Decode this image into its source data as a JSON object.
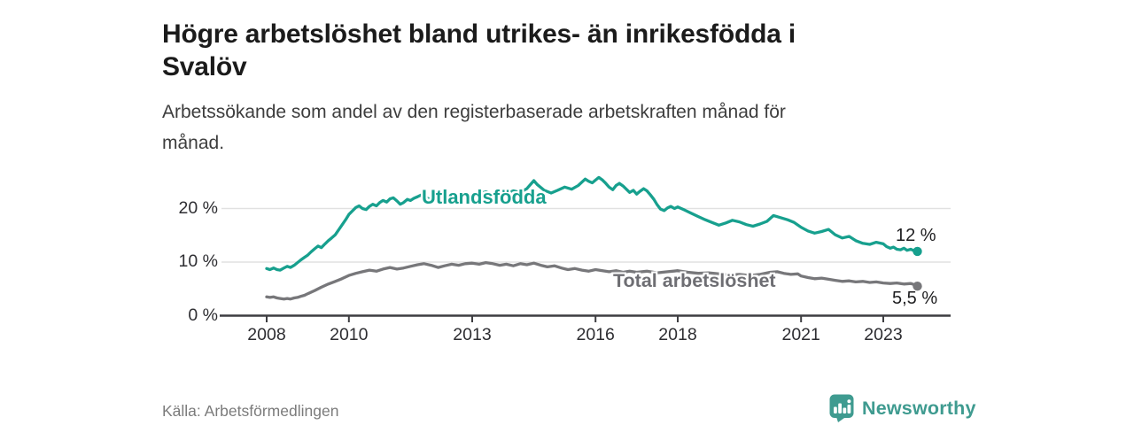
{
  "header": {
    "title_lines": [
      "Högre arbetslöshet bland utrikes- än inrikesfödda i",
      "Svalöv"
    ],
    "subtitle_lines": [
      "Arbetssökande som andel av den registerbaserade arbetskraften månad för",
      "månad."
    ]
  },
  "colors": {
    "accent_teal": "#17a08e",
    "line_gray": "#77777a",
    "grid": "#e1e1e1",
    "axis": "#3d3d41",
    "brand_teal": "#3f9b90"
  },
  "chart_data": {
    "type": "line",
    "x_axis": {
      "label_years": [
        2008,
        2010,
        2013,
        2016,
        2018,
        2021,
        2023
      ],
      "range": [
        2008,
        2024.2
      ]
    },
    "y_axis": {
      "unit": "%",
      "range": [
        0,
        27
      ],
      "ticks": [
        {
          "value": 0,
          "label": "0 %"
        },
        {
          "value": 10,
          "label": "10 %"
        },
        {
          "value": 20,
          "label": "20 %"
        }
      ]
    },
    "grid": "horizontal-only",
    "legend": "inline-labels-on-lines",
    "series": [
      {
        "name": "Utlandsfödda",
        "color": "#17a08e",
        "end_label": "12 %",
        "end_value": 12.0,
        "points": [
          [
            2008.0,
            8.8
          ],
          [
            2008.08,
            8.6
          ],
          [
            2008.17,
            8.9
          ],
          [
            2008.25,
            8.6
          ],
          [
            2008.33,
            8.5
          ],
          [
            2008.42,
            8.9
          ],
          [
            2008.5,
            9.2
          ],
          [
            2008.58,
            9.0
          ],
          [
            2008.67,
            9.4
          ],
          [
            2008.75,
            9.9
          ],
          [
            2008.83,
            10.4
          ],
          [
            2008.92,
            10.9
          ],
          [
            2009.0,
            11.3
          ],
          [
            2009.08,
            11.9
          ],
          [
            2009.17,
            12.5
          ],
          [
            2009.25,
            13.0
          ],
          [
            2009.33,
            12.7
          ],
          [
            2009.42,
            13.4
          ],
          [
            2009.5,
            14.0
          ],
          [
            2009.58,
            14.5
          ],
          [
            2009.67,
            15.1
          ],
          [
            2009.75,
            16.0
          ],
          [
            2009.83,
            16.9
          ],
          [
            2009.92,
            17.9
          ],
          [
            2010.0,
            18.9
          ],
          [
            2010.08,
            19.5
          ],
          [
            2010.17,
            20.2
          ],
          [
            2010.25,
            20.5
          ],
          [
            2010.33,
            20.0
          ],
          [
            2010.42,
            19.8
          ],
          [
            2010.5,
            20.4
          ],
          [
            2010.58,
            20.8
          ],
          [
            2010.67,
            20.5
          ],
          [
            2010.75,
            21.1
          ],
          [
            2010.83,
            21.5
          ],
          [
            2010.92,
            21.2
          ],
          [
            2011.0,
            21.8
          ],
          [
            2011.08,
            22.0
          ],
          [
            2011.17,
            21.4
          ],
          [
            2011.25,
            20.8
          ],
          [
            2011.33,
            21.1
          ],
          [
            2011.42,
            21.7
          ],
          [
            2011.5,
            21.5
          ],
          [
            2011.58,
            21.9
          ],
          [
            2011.67,
            22.2
          ],
          [
            2011.75,
            22.5
          ],
          [
            2011.83,
            22.2
          ],
          [
            2011.92,
            21.9
          ],
          [
            2012.0,
            21.6
          ],
          [
            2012.17,
            22.0
          ],
          [
            2012.33,
            21.7
          ],
          [
            2012.5,
            22.1
          ],
          [
            2012.67,
            22.4
          ],
          [
            2012.83,
            22.1
          ],
          [
            2013.0,
            22.5
          ],
          [
            2013.17,
            22.8
          ],
          [
            2013.33,
            23.1
          ],
          [
            2013.5,
            22.6
          ],
          [
            2013.67,
            23.0
          ],
          [
            2013.83,
            22.8
          ],
          [
            2014.0,
            23.3
          ],
          [
            2014.17,
            23.0
          ],
          [
            2014.33,
            23.7
          ],
          [
            2014.5,
            25.2
          ],
          [
            2014.58,
            24.5
          ],
          [
            2014.75,
            23.4
          ],
          [
            2014.92,
            22.9
          ],
          [
            2015.08,
            23.4
          ],
          [
            2015.25,
            24.0
          ],
          [
            2015.42,
            23.6
          ],
          [
            2015.58,
            24.3
          ],
          [
            2015.75,
            25.5
          ],
          [
            2015.83,
            25.1
          ],
          [
            2015.92,
            24.8
          ],
          [
            2016.0,
            25.3
          ],
          [
            2016.08,
            25.8
          ],
          [
            2016.17,
            25.3
          ],
          [
            2016.25,
            24.7
          ],
          [
            2016.33,
            24.0
          ],
          [
            2016.42,
            23.5
          ],
          [
            2016.5,
            24.3
          ],
          [
            2016.58,
            24.7
          ],
          [
            2016.67,
            24.2
          ],
          [
            2016.75,
            23.6
          ],
          [
            2016.83,
            23.0
          ],
          [
            2016.92,
            23.4
          ],
          [
            2017.0,
            22.7
          ],
          [
            2017.08,
            23.2
          ],
          [
            2017.17,
            23.7
          ],
          [
            2017.25,
            23.3
          ],
          [
            2017.33,
            22.6
          ],
          [
            2017.42,
            21.7
          ],
          [
            2017.5,
            20.7
          ],
          [
            2017.58,
            19.9
          ],
          [
            2017.67,
            19.6
          ],
          [
            2017.75,
            20.1
          ],
          [
            2017.83,
            20.4
          ],
          [
            2017.92,
            20.0
          ],
          [
            2018.0,
            20.3
          ],
          [
            2018.17,
            19.7
          ],
          [
            2018.33,
            19.1
          ],
          [
            2018.5,
            18.5
          ],
          [
            2018.67,
            17.9
          ],
          [
            2018.83,
            17.4
          ],
          [
            2019.0,
            16.9
          ],
          [
            2019.17,
            17.3
          ],
          [
            2019.33,
            17.8
          ],
          [
            2019.5,
            17.5
          ],
          [
            2019.67,
            17.0
          ],
          [
            2019.83,
            16.7
          ],
          [
            2020.0,
            17.1
          ],
          [
            2020.17,
            17.6
          ],
          [
            2020.33,
            18.7
          ],
          [
            2020.5,
            18.3
          ],
          [
            2020.67,
            17.9
          ],
          [
            2020.83,
            17.4
          ],
          [
            2021.0,
            16.5
          ],
          [
            2021.17,
            15.8
          ],
          [
            2021.33,
            15.4
          ],
          [
            2021.5,
            15.7
          ],
          [
            2021.67,
            16.1
          ],
          [
            2021.83,
            15.1
          ],
          [
            2022.0,
            14.5
          ],
          [
            2022.17,
            14.8
          ],
          [
            2022.33,
            14.0
          ],
          [
            2022.5,
            13.5
          ],
          [
            2022.67,
            13.3
          ],
          [
            2022.83,
            13.7
          ],
          [
            2023.0,
            13.4
          ],
          [
            2023.08,
            12.9
          ],
          [
            2023.17,
            12.6
          ],
          [
            2023.25,
            12.8
          ],
          [
            2023.33,
            12.4
          ],
          [
            2023.42,
            12.3
          ],
          [
            2023.5,
            12.6
          ],
          [
            2023.58,
            12.2
          ],
          [
            2023.67,
            12.4
          ],
          [
            2023.75,
            12.1
          ],
          [
            2023.83,
            12.0
          ]
        ]
      },
      {
        "name": "Total arbetslöshet",
        "color": "#77777a",
        "end_label": "5,5 %",
        "end_value": 5.5,
        "points": [
          [
            2008.0,
            3.5
          ],
          [
            2008.08,
            3.4
          ],
          [
            2008.17,
            3.5
          ],
          [
            2008.25,
            3.3
          ],
          [
            2008.33,
            3.2
          ],
          [
            2008.42,
            3.1
          ],
          [
            2008.5,
            3.2
          ],
          [
            2008.58,
            3.1
          ],
          [
            2008.67,
            3.3
          ],
          [
            2008.75,
            3.4
          ],
          [
            2008.83,
            3.6
          ],
          [
            2008.92,
            3.8
          ],
          [
            2009.0,
            4.1
          ],
          [
            2009.17,
            4.7
          ],
          [
            2009.33,
            5.3
          ],
          [
            2009.5,
            5.9
          ],
          [
            2009.67,
            6.4
          ],
          [
            2009.83,
            6.9
          ],
          [
            2010.0,
            7.5
          ],
          [
            2010.17,
            7.9
          ],
          [
            2010.33,
            8.2
          ],
          [
            2010.5,
            8.5
          ],
          [
            2010.67,
            8.3
          ],
          [
            2010.83,
            8.7
          ],
          [
            2011.0,
            9.0
          ],
          [
            2011.17,
            8.7
          ],
          [
            2011.33,
            8.9
          ],
          [
            2011.5,
            9.2
          ],
          [
            2011.67,
            9.5
          ],
          [
            2011.83,
            9.7
          ],
          [
            2012.0,
            9.4
          ],
          [
            2012.17,
            9.0
          ],
          [
            2012.33,
            9.3
          ],
          [
            2012.5,
            9.6
          ],
          [
            2012.67,
            9.4
          ],
          [
            2012.83,
            9.7
          ],
          [
            2013.0,
            9.8
          ],
          [
            2013.17,
            9.6
          ],
          [
            2013.33,
            9.9
          ],
          [
            2013.5,
            9.7
          ],
          [
            2013.67,
            9.4
          ],
          [
            2013.83,
            9.6
          ],
          [
            2014.0,
            9.3
          ],
          [
            2014.17,
            9.7
          ],
          [
            2014.33,
            9.5
          ],
          [
            2014.5,
            9.8
          ],
          [
            2014.67,
            9.4
          ],
          [
            2014.83,
            9.1
          ],
          [
            2015.0,
            9.3
          ],
          [
            2015.17,
            8.9
          ],
          [
            2015.33,
            8.6
          ],
          [
            2015.5,
            8.8
          ],
          [
            2015.67,
            8.5
          ],
          [
            2015.83,
            8.3
          ],
          [
            2016.0,
            8.6
          ],
          [
            2016.17,
            8.4
          ],
          [
            2016.33,
            8.2
          ],
          [
            2016.5,
            8.4
          ],
          [
            2016.67,
            8.1
          ],
          [
            2016.83,
            8.3
          ],
          [
            2017.0,
            8.1
          ],
          [
            2017.25,
            8.3
          ],
          [
            2017.5,
            8.0
          ],
          [
            2017.75,
            8.2
          ],
          [
            2018.0,
            8.4
          ],
          [
            2018.25,
            8.1
          ],
          [
            2018.5,
            7.9
          ],
          [
            2018.75,
            8.0
          ],
          [
            2019.0,
            7.8
          ],
          [
            2019.25,
            7.6
          ],
          [
            2019.5,
            7.7
          ],
          [
            2019.75,
            7.5
          ],
          [
            2020.0,
            7.7
          ],
          [
            2020.25,
            8.1
          ],
          [
            2020.42,
            8.2
          ],
          [
            2020.58,
            7.9
          ],
          [
            2020.75,
            7.7
          ],
          [
            2020.92,
            7.8
          ],
          [
            2021.0,
            7.4
          ],
          [
            2021.17,
            7.1
          ],
          [
            2021.33,
            6.9
          ],
          [
            2021.5,
            7.0
          ],
          [
            2021.67,
            6.8
          ],
          [
            2021.83,
            6.6
          ],
          [
            2022.0,
            6.4
          ],
          [
            2022.17,
            6.5
          ],
          [
            2022.33,
            6.3
          ],
          [
            2022.5,
            6.4
          ],
          [
            2022.67,
            6.2
          ],
          [
            2022.83,
            6.3
          ],
          [
            2023.0,
            6.1
          ],
          [
            2023.17,
            6.0
          ],
          [
            2023.33,
            6.1
          ],
          [
            2023.5,
            5.9
          ],
          [
            2023.67,
            6.0
          ],
          [
            2023.75,
            5.8
          ],
          [
            2023.83,
            5.5
          ]
        ]
      }
    ]
  },
  "footer": {
    "source": "Källa: Arbetsförmedlingen",
    "brand": "Newsworthy"
  }
}
